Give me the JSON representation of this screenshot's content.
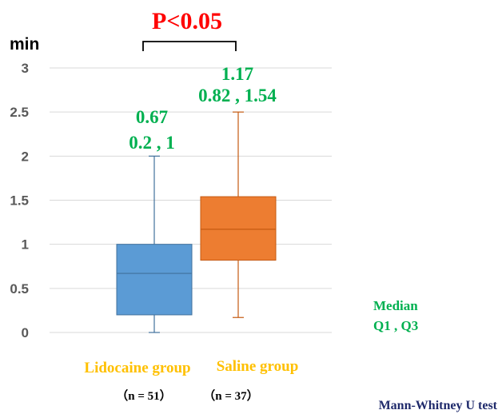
{
  "chart_data": {
    "type": "box",
    "ylabel": "min",
    "ylim": [
      0,
      3
    ],
    "yticks": [
      "0",
      "0.5",
      "1",
      "1.5",
      "2",
      "2.5",
      "3"
    ],
    "ytick_values": [
      0,
      0.5,
      1,
      1.5,
      2,
      2.5,
      3
    ],
    "grid": true,
    "groups": [
      {
        "name": "Lidocaine group",
        "n_label": "（n = 51）",
        "min": 0,
        "q1": 0.2,
        "median": 0.67,
        "q3": 1.0,
        "max": 2.0,
        "median_label": "0.67",
        "quartile_label": "0.2 , 1",
        "fill": "#5b9bd5",
        "stroke": "#41719c"
      },
      {
        "name": "Saline group",
        "n_label": "（n = 37）",
        "min": 0.17,
        "q1": 0.82,
        "median": 1.17,
        "q3": 1.54,
        "max": 2.5,
        "median_label": "1.17",
        "quartile_label": "0.82 , 1.54",
        "fill": "#ed7d31",
        "stroke": "#c55a11"
      }
    ],
    "significance": "P<0.05",
    "legend": [
      "Median",
      "Q1 , Q3"
    ],
    "test_label": "Mann-Whitney U test"
  }
}
